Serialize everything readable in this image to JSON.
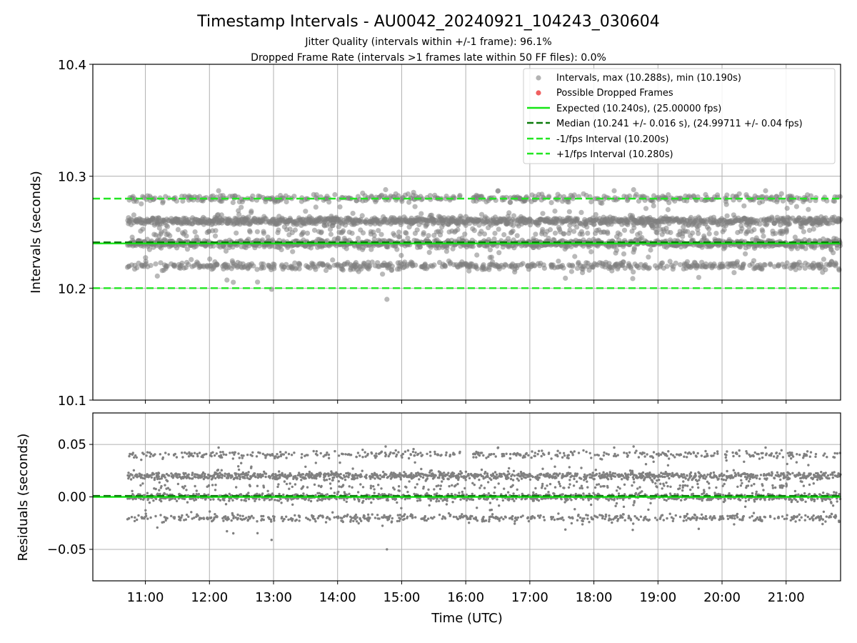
{
  "figure": {
    "title": "Timestamp Intervals - AU0042_20240921_104243_030604",
    "subtitle_1": "Jitter Quality (intervals within +/-1 frame): 96.1%",
    "subtitle_2": "Dropped Frame Rate (intervals >1 frames late within 50 FF files): 0.0%"
  },
  "colors": {
    "points": "#808080",
    "dropped": "#f06060",
    "expected": "#14e614",
    "median": "#0a7a0a",
    "fps_bounds": "#22e622",
    "grid": "#b0b0b0"
  },
  "chart_data": [
    {
      "type": "scatter",
      "ylabel": "Intervals (seconds)",
      "xlabel": "",
      "ylim": [
        10.1,
        10.4
      ],
      "yticks": [
        "10.1",
        "10.2",
        "10.3",
        "10.4"
      ],
      "xlim_hours": [
        10.18,
        21.85
      ],
      "grid": true,
      "legend_position": "top-right",
      "legend": [
        {
          "key": "intervals",
          "label": "Intervals, max (10.288s), min (10.190s)",
          "style": "marker"
        },
        {
          "key": "dropped",
          "label": "Possible Dropped Frames",
          "style": "marker"
        },
        {
          "key": "expected",
          "label": "Expected (10.240s), (25.00000 fps)",
          "style": "solid"
        },
        {
          "key": "median",
          "label": "Median (10.241 +/- 0.016 s), (24.99711 +/- 0.04 fps)",
          "style": "dashed"
        },
        {
          "key": "minus",
          "label": "-1/fps Interval (10.200s)",
          "style": "dashed"
        },
        {
          "key": "plus",
          "label": "+1/fps Interval (10.280s)",
          "style": "dashed"
        }
      ],
      "reference_lines": {
        "expected": 10.24,
        "median": 10.241,
        "minus": 10.2,
        "plus": 10.28
      },
      "intervals_max": 10.288,
      "intervals_min": 10.19,
      "x_range_data": [
        10.72,
        21.85
      ],
      "bands": [
        {
          "y": 10.22,
          "weight": 0.16
        },
        {
          "y": 10.24,
          "weight": 0.34
        },
        {
          "y": 10.26,
          "weight": 0.33
        },
        {
          "y": 10.28,
          "weight": 0.12
        },
        {
          "y": 10.25,
          "weight": 0.05
        }
      ],
      "point_count": 3600,
      "outliers": [
        {
          "x": 14.77,
          "y": 10.19
        },
        {
          "x": 12.97,
          "y": 10.199
        },
        {
          "x": 14.75,
          "y": 10.288
        },
        {
          "x": 18.62,
          "y": 10.288
        },
        {
          "x": 20.68,
          "y": 10.287
        }
      ]
    },
    {
      "type": "scatter",
      "ylabel": "Residuals (seconds)",
      "xlabel": "Time (UTC)",
      "ylim": [
        -0.08,
        0.08
      ],
      "yticks": [
        "−0.05",
        "0.00",
        "0.05"
      ],
      "ytick_values": [
        -0.05,
        0.0,
        0.05
      ],
      "xticks": [
        "11:00",
        "12:00",
        "13:00",
        "14:00",
        "15:00",
        "16:00",
        "17:00",
        "18:00",
        "19:00",
        "20:00",
        "21:00"
      ],
      "xtick_hours": [
        11,
        12,
        13,
        14,
        15,
        16,
        17,
        18,
        19,
        20,
        21
      ],
      "grid": true,
      "reference_lines": {
        "expected": 0.0,
        "median": 0.001
      },
      "outliers": [
        {
          "x": 14.77,
          "y": -0.05
        },
        {
          "x": 12.97,
          "y": -0.041
        },
        {
          "x": 14.75,
          "y": 0.048
        },
        {
          "x": 18.62,
          "y": 0.048
        }
      ]
    }
  ]
}
